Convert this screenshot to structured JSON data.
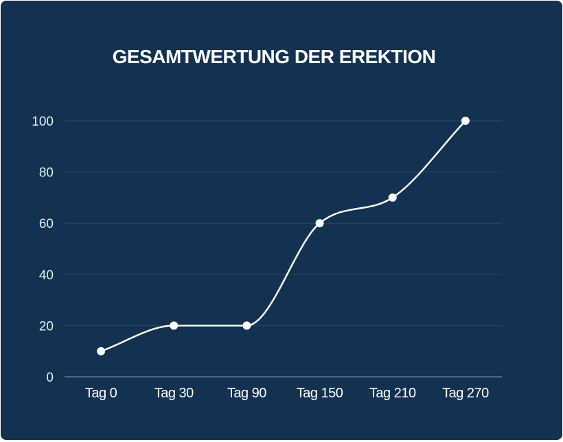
{
  "colors": {
    "background": "#133251",
    "grid": "#2a4966",
    "axis": "#6f89a3",
    "line": "#ffffff",
    "text": "#ffffff"
  },
  "chart_data": {
    "type": "line",
    "title": "GESAMTWERTUNG DER EREKTION",
    "xlabel": "",
    "ylabel": "",
    "categories": [
      "Tag 0",
      "Tag 30",
      "Tag 90",
      "Tag 150",
      "Tag 210",
      "Tag 270"
    ],
    "series": [
      {
        "values": [
          10,
          20,
          20,
          60,
          70,
          100
        ]
      }
    ],
    "ylim": [
      0,
      100
    ],
    "yticks": [
      0,
      20,
      40,
      60,
      80,
      100
    ],
    "grid": true,
    "smooth": true,
    "markers": true
  }
}
